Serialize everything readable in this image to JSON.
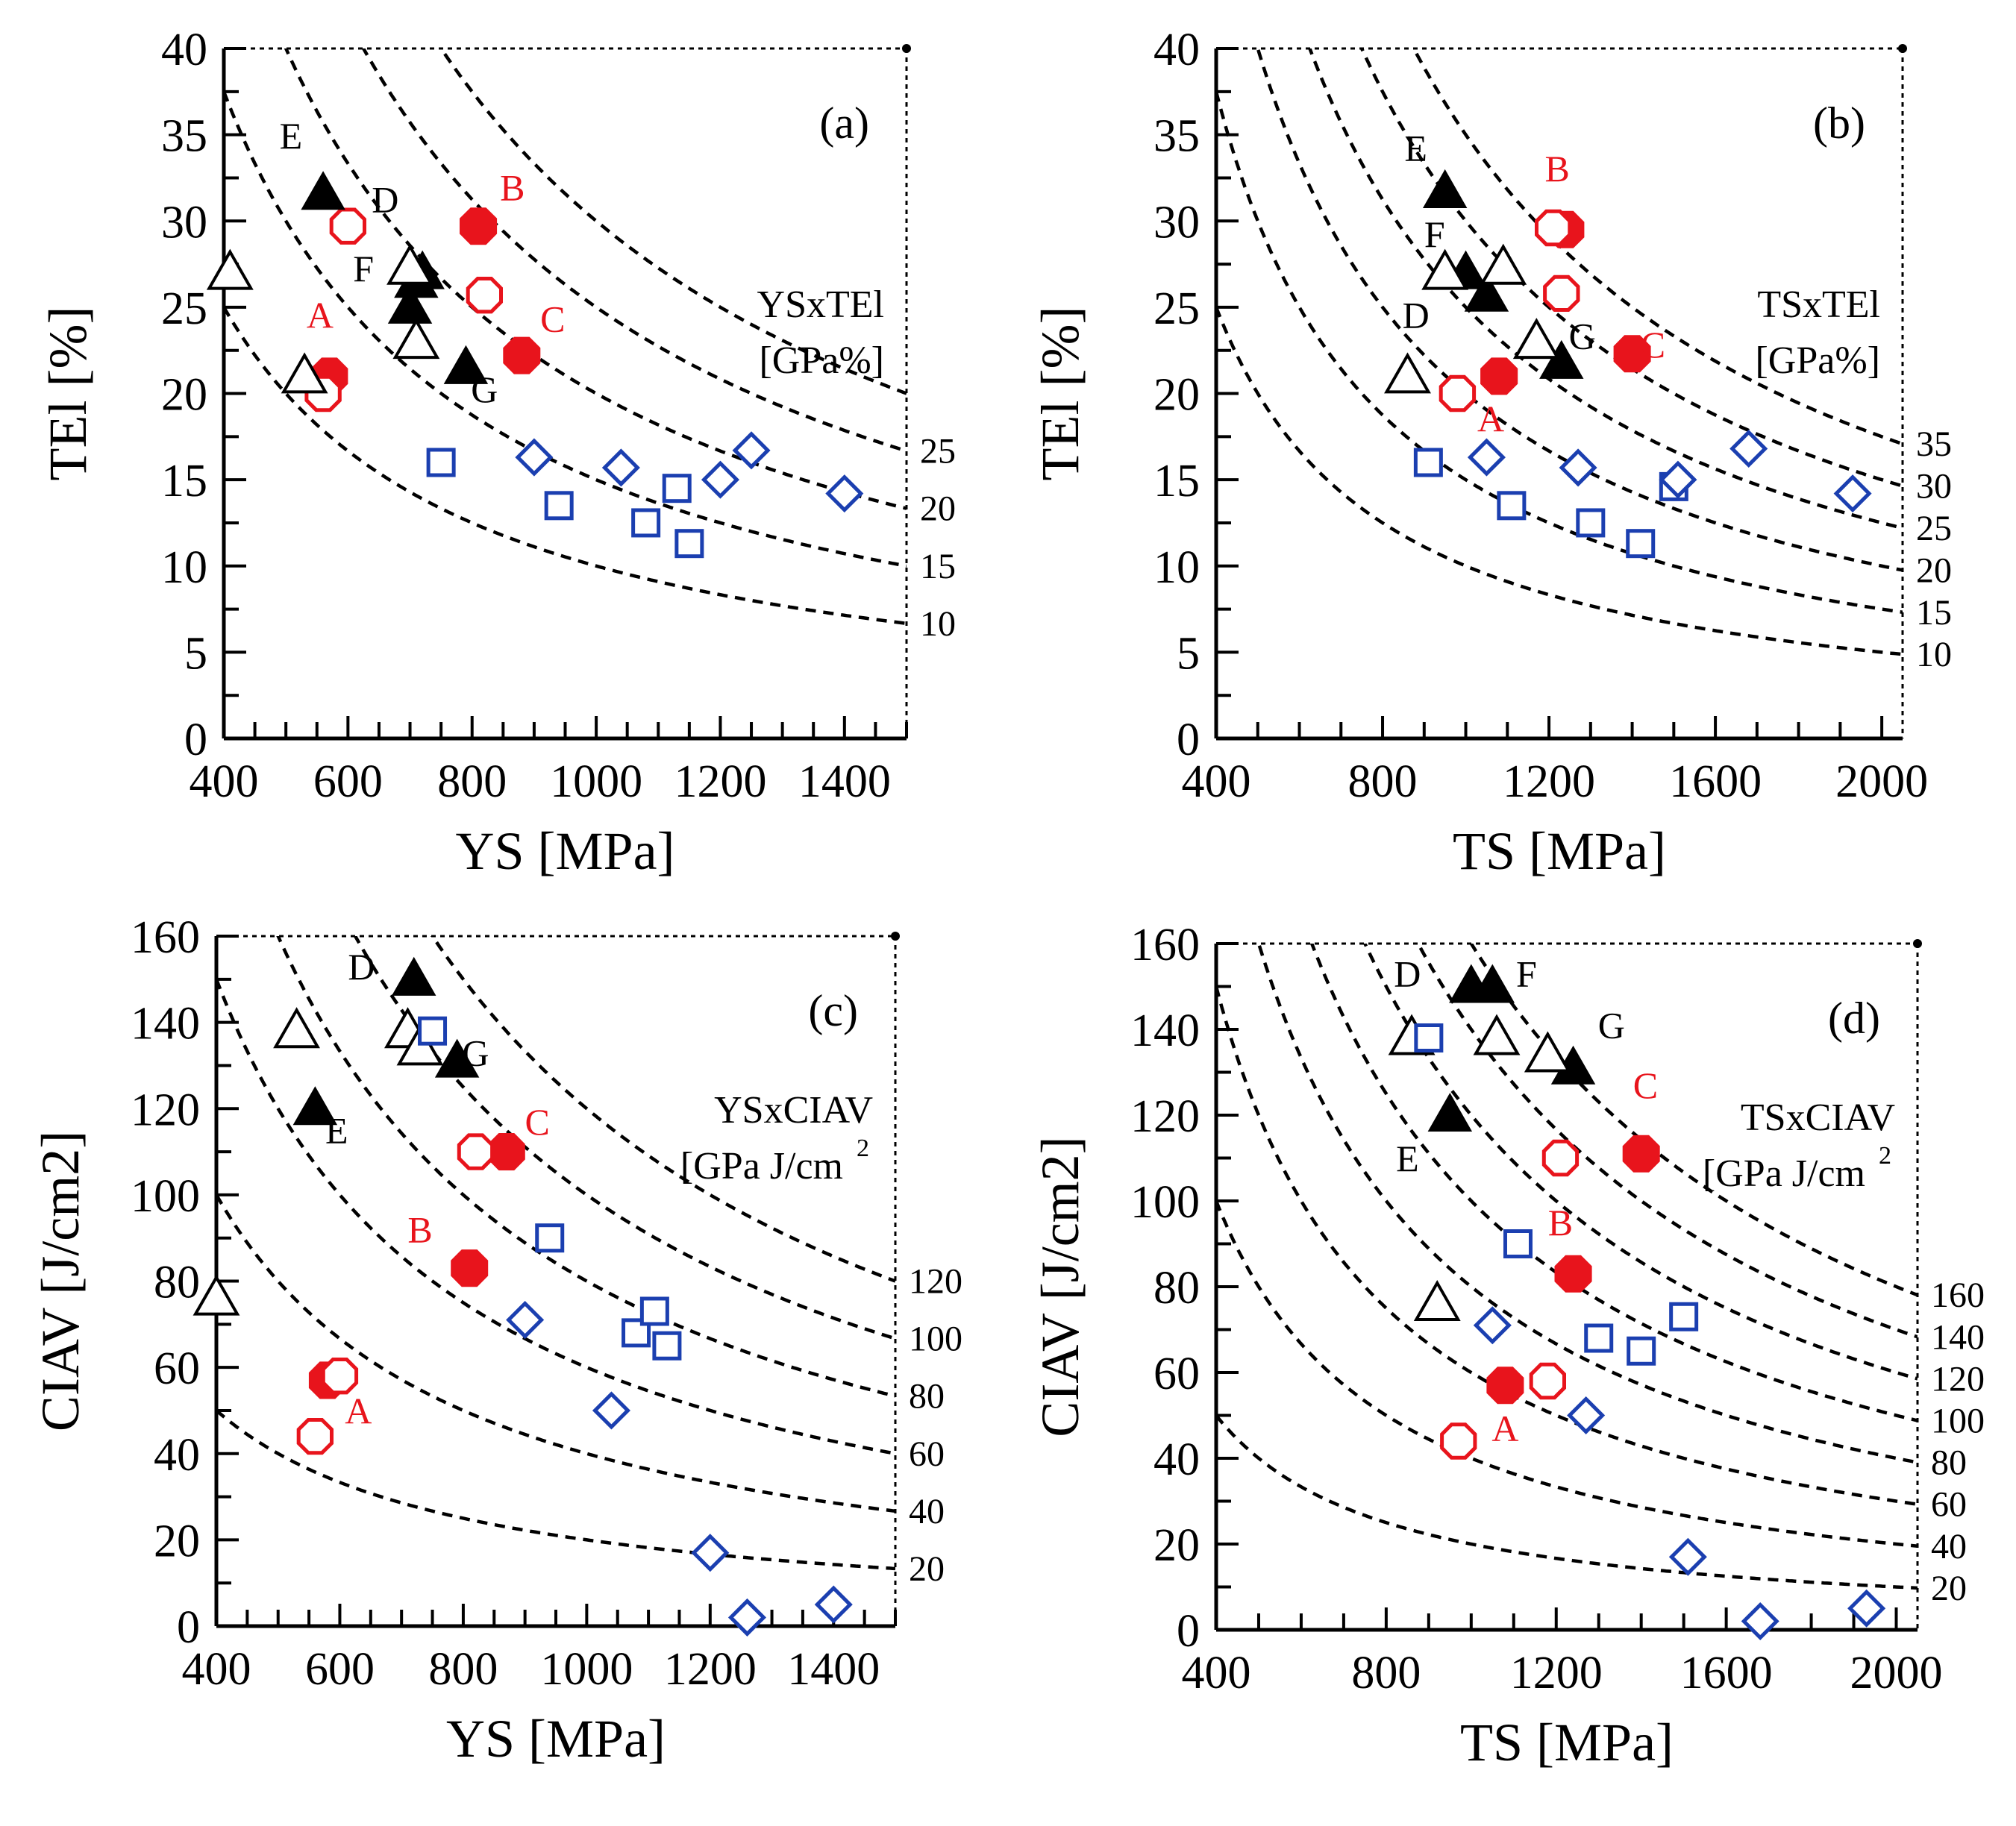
{
  "figure": {
    "colors": {
      "red": "#e8141c",
      "blue": "#1b3fb0",
      "black": "#000000"
    }
  },
  "chart_data": [
    {
      "id": "a",
      "type": "scatter",
      "panel_label": "(a)",
      "xlabel": "YS [MPa]",
      "ylabel": "TEl [%]",
      "xlim": [
        400,
        1500
      ],
      "ylim": [
        0,
        40
      ],
      "xticks": [
        "400",
        "600",
        "800",
        "1000",
        "1200",
        "1400"
      ],
      "xtick_values": [
        400,
        600,
        800,
        1000,
        1200,
        1400
      ],
      "yticks": [
        "0",
        "5",
        "10",
        "15",
        "20",
        "25",
        "30",
        "35",
        "40"
      ],
      "ytick_values": [
        0,
        5,
        10,
        15,
        20,
        25,
        30,
        35,
        40
      ],
      "product_label": [
        "YSxTEl",
        "[GPa%]"
      ],
      "contours": [
        {
          "label": "10",
          "product": 10
        },
        {
          "label": "15",
          "product": 15
        },
        {
          "label": "20",
          "product": 20
        },
        {
          "label": "25",
          "product": 25
        },
        {
          "label": "",
          "product": 30
        }
      ],
      "series": [
        {
          "name": "filled-red-circle",
          "marker": "circle",
          "color": "red",
          "filled": true,
          "points": [
            [
              570,
              21
            ],
            [
              810,
              29.7
            ],
            [
              880,
              22.2
            ]
          ]
        },
        {
          "name": "open-red-circle",
          "marker": "circle",
          "color": "red",
          "filled": false,
          "points": [
            [
              560,
              20
            ],
            [
              600,
              29.7
            ],
            [
              820,
              25.7
            ]
          ]
        },
        {
          "name": "filled-black-triangle",
          "marker": "triangle",
          "color": "black",
          "filled": true,
          "points": [
            [
              560,
              31.6
            ],
            [
              710,
              26.5
            ],
            [
              720,
              27
            ],
            [
              700,
              25
            ],
            [
              790,
              21.5
            ]
          ]
        },
        {
          "name": "open-black-triangle",
          "marker": "triangle",
          "color": "black",
          "filled": false,
          "points": [
            [
              410,
              27
            ],
            [
              530,
              21
            ],
            [
              700,
              27.3
            ],
            [
              710,
              23
            ]
          ]
        },
        {
          "name": "open-blue-square",
          "marker": "square",
          "color": "blue",
          "filled": false,
          "points": [
            [
              750,
              16
            ],
            [
              940,
              13.5
            ],
            [
              1080,
              12.5
            ],
            [
              1130,
              14.5
            ],
            [
              1150,
              11.3
            ]
          ]
        },
        {
          "name": "open-blue-diamond",
          "marker": "diamond",
          "color": "blue",
          "filled": false,
          "points": [
            [
              900,
              16.3
            ],
            [
              1040,
              15.7
            ],
            [
              1200,
              15
            ],
            [
              1250,
              16.7
            ],
            [
              1400,
              14.2
            ]
          ]
        }
      ],
      "annotations": [
        {
          "text": "A",
          "x": 555,
          "y": 23.8,
          "color": "red"
        },
        {
          "text": "B",
          "x": 865,
          "y": 31.2,
          "color": "red"
        },
        {
          "text": "C",
          "x": 930,
          "y": 23.6,
          "color": "red"
        },
        {
          "text": "D",
          "x": 660,
          "y": 30.5,
          "color": "black"
        },
        {
          "text": "E",
          "x": 508,
          "y": 34.2,
          "color": "black"
        },
        {
          "text": "F",
          "x": 625,
          "y": 26.5,
          "color": "black"
        },
        {
          "text": "G",
          "x": 820,
          "y": 19.5,
          "color": "black"
        }
      ]
    },
    {
      "id": "b",
      "type": "scatter",
      "panel_label": "(b)",
      "xlabel": "TS [MPa]",
      "ylabel": "TEl [%]",
      "xlim": [
        400,
        2050
      ],
      "ylim": [
        0,
        40
      ],
      "xticks": [
        "400",
        "800",
        "1200",
        "1600",
        "2000"
      ],
      "xtick_values": [
        400,
        800,
        1200,
        1600,
        2000
      ],
      "yticks": [
        "0",
        "5",
        "10",
        "15",
        "20",
        "25",
        "30",
        "35",
        "40"
      ],
      "ytick_values": [
        0,
        5,
        10,
        15,
        20,
        25,
        30,
        35,
        40
      ],
      "product_label": [
        "TSxTEl",
        "[GPa%]"
      ],
      "contours": [
        {
          "label": "10",
          "product": 10
        },
        {
          "label": "15",
          "product": 15
        },
        {
          "label": "20",
          "product": 20
        },
        {
          "label": "25",
          "product": 25
        },
        {
          "label": "30",
          "product": 30
        },
        {
          "label": "35",
          "product": 35
        }
      ],
      "series": [
        {
          "name": "filled-red-circle",
          "marker": "circle",
          "color": "red",
          "filled": true,
          "points": [
            [
              1080,
              21
            ],
            [
              1240,
              29.5
            ],
            [
              1400,
              22.3
            ]
          ]
        },
        {
          "name": "open-red-circle",
          "marker": "circle",
          "color": "red",
          "filled": false,
          "points": [
            [
              980,
              20
            ],
            [
              1210,
              29.6
            ],
            [
              1230,
              25.8
            ]
          ]
        },
        {
          "name": "filled-black-triangle",
          "marker": "triangle",
          "color": "black",
          "filled": true,
          "points": [
            [
              950,
              31.7
            ],
            [
              1000,
              27
            ],
            [
              1050,
              25.7
            ],
            [
              1230,
              21.8
            ]
          ]
        },
        {
          "name": "open-black-triangle",
          "marker": "triangle",
          "color": "black",
          "filled": false,
          "points": [
            [
              860,
              21
            ],
            [
              950,
              27
            ],
            [
              1090,
              27.3
            ],
            [
              1170,
              23
            ]
          ]
        },
        {
          "name": "open-blue-square",
          "marker": "square",
          "color": "blue",
          "filled": false,
          "points": [
            [
              910,
              16
            ],
            [
              1110,
              13.5
            ],
            [
              1300,
              12.5
            ],
            [
              1420,
              11.3
            ],
            [
              1500,
              14.6
            ]
          ]
        },
        {
          "name": "open-blue-diamond",
          "marker": "diamond",
          "color": "blue",
          "filled": false,
          "points": [
            [
              1050,
              16.3
            ],
            [
              1270,
              15.7
            ],
            [
              1510,
              15
            ],
            [
              1680,
              16.8
            ],
            [
              1930,
              14.2
            ]
          ]
        }
      ],
      "annotations": [
        {
          "text": "A",
          "x": 1060,
          "y": 17.8,
          "color": "red"
        },
        {
          "text": "B",
          "x": 1220,
          "y": 32.3,
          "color": "red"
        },
        {
          "text": "C",
          "x": 1450,
          "y": 22.1,
          "color": "red"
        },
        {
          "text": "D",
          "x": 880,
          "y": 23.8,
          "color": "black"
        },
        {
          "text": "E",
          "x": 880,
          "y": 33.5,
          "color": "black"
        },
        {
          "text": "F",
          "x": 925,
          "y": 28.5,
          "color": "black"
        },
        {
          "text": "G",
          "x": 1280,
          "y": 22.6,
          "color": "black"
        }
      ]
    },
    {
      "id": "c",
      "type": "scatter",
      "panel_label": "(c)",
      "xlabel": "YS [MPa]",
      "ylabel": "CIAV [J/cm2]",
      "xlim": [
        400,
        1500
      ],
      "ylim": [
        0,
        160
      ],
      "xticks": [
        "400",
        "600",
        "800",
        "1000",
        "1200",
        "1400"
      ],
      "xtick_values": [
        400,
        600,
        800,
        1000,
        1200,
        1400
      ],
      "yticks": [
        "0",
        "20",
        "40",
        "60",
        "80",
        "100",
        "120",
        "140",
        "160"
      ],
      "ytick_values": [
        0,
        20,
        40,
        60,
        80,
        100,
        120,
        140,
        160
      ],
      "product_label": [
        "YSxCIAV",
        "[GPa J/cm"
      ],
      "product_label_sup": "2",
      "contours": [
        {
          "label": "20",
          "product": 20
        },
        {
          "label": "40",
          "product": 40
        },
        {
          "label": "60",
          "product": 60
        },
        {
          "label": "80",
          "product": 80
        },
        {
          "label": "100",
          "product": 100
        },
        {
          "label": "120",
          "product": 120
        }
      ],
      "series": [
        {
          "name": "filled-red-circle",
          "marker": "circle",
          "color": "red",
          "filled": true,
          "points": [
            [
              580,
              57
            ],
            [
              810,
              83
            ],
            [
              870,
              110
            ]
          ]
        },
        {
          "name": "open-red-circle",
          "marker": "circle",
          "color": "red",
          "filled": false,
          "points": [
            [
              560,
              44
            ],
            [
              600,
              58
            ],
            [
              820,
              110
            ]
          ]
        },
        {
          "name": "filled-black-triangle",
          "marker": "triangle",
          "color": "black",
          "filled": true,
          "points": [
            [
              560,
              120
            ],
            [
              720,
              150
            ],
            [
              790,
              131
            ]
          ]
        },
        {
          "name": "open-black-triangle",
          "marker": "triangle",
          "color": "black",
          "filled": false,
          "points": [
            [
              400,
              76
            ],
            [
              530,
              138
            ],
            [
              710,
              138
            ],
            [
              730,
              134
            ]
          ]
        },
        {
          "name": "open-blue-square",
          "marker": "square",
          "color": "blue",
          "filled": false,
          "points": [
            [
              750,
              138
            ],
            [
              940,
              90
            ],
            [
              1080,
              68
            ],
            [
              1110,
              73
            ],
            [
              1130,
              65
            ]
          ]
        },
        {
          "name": "open-blue-diamond",
          "marker": "diamond",
          "color": "blue",
          "filled": false,
          "points": [
            [
              900,
              71
            ],
            [
              1040,
              50
            ],
            [
              1200,
              17
            ],
            [
              1260,
              2
            ],
            [
              1400,
              5
            ]
          ]
        }
      ],
      "annotations": [
        {
          "text": "A",
          "x": 630,
          "y": 47,
          "color": "red"
        },
        {
          "text": "B",
          "x": 730,
          "y": 89,
          "color": "red"
        },
        {
          "text": "C",
          "x": 920,
          "y": 114,
          "color": "red"
        },
        {
          "text": "D",
          "x": 635,
          "y": 150,
          "color": "black"
        },
        {
          "text": "E",
          "x": 595,
          "y": 112,
          "color": "black"
        },
        {
          "text": "G",
          "x": 820,
          "y": 130,
          "color": "black"
        }
      ]
    },
    {
      "id": "d",
      "type": "scatter",
      "panel_label": "(d)",
      "xlabel": "TS [MPa]",
      "ylabel": "CIAV [J/cm2]",
      "xlim": [
        400,
        2050
      ],
      "ylim": [
        0,
        160
      ],
      "xticks": [
        "400",
        "800",
        "1200",
        "1600",
        "2000"
      ],
      "xtick_values": [
        400,
        800,
        1200,
        1600,
        2000
      ],
      "yticks": [
        "0",
        "20",
        "40",
        "60",
        "80",
        "100",
        "120",
        "140",
        "160"
      ],
      "ytick_values": [
        0,
        20,
        40,
        60,
        80,
        100,
        120,
        140,
        160
      ],
      "product_label": [
        "TSxCIAV",
        "[GPa J/cm"
      ],
      "product_label_sup": "2",
      "contours": [
        {
          "label": "20",
          "product": 20
        },
        {
          "label": "40",
          "product": 40
        },
        {
          "label": "60",
          "product": 60
        },
        {
          "label": "80",
          "product": 80
        },
        {
          "label": "100",
          "product": 100
        },
        {
          "label": "120",
          "product": 120
        },
        {
          "label": "140",
          "product": 140
        },
        {
          "label": "160",
          "product": 160
        }
      ],
      "series": [
        {
          "name": "filled-red-circle",
          "marker": "circle",
          "color": "red",
          "filled": true,
          "points": [
            [
              1080,
              57
            ],
            [
              1240,
              83
            ],
            [
              1400,
              111
            ]
          ]
        },
        {
          "name": "open-red-circle",
          "marker": "circle",
          "color": "red",
          "filled": false,
          "points": [
            [
              970,
              44
            ],
            [
              1180,
              58
            ],
            [
              1210,
              110
            ]
          ]
        },
        {
          "name": "filled-black-triangle",
          "marker": "triangle",
          "color": "black",
          "filled": true,
          "points": [
            [
              950,
              120
            ],
            [
              1000,
              150
            ],
            [
              1050,
              150
            ],
            [
              1240,
              131
            ]
          ]
        },
        {
          "name": "open-black-triangle",
          "marker": "triangle",
          "color": "black",
          "filled": false,
          "points": [
            [
              860,
              138
            ],
            [
              920,
              76
            ],
            [
              1060,
              138
            ],
            [
              1180,
              134
            ]
          ]
        },
        {
          "name": "open-blue-square",
          "marker": "square",
          "color": "blue",
          "filled": false,
          "points": [
            [
              900,
              138
            ],
            [
              1110,
              90
            ],
            [
              1300,
              68
            ],
            [
              1400,
              65
            ],
            [
              1500,
              73
            ]
          ]
        },
        {
          "name": "open-blue-diamond",
          "marker": "diamond",
          "color": "blue",
          "filled": false,
          "points": [
            [
              1050,
              71
            ],
            [
              1270,
              50
            ],
            [
              1510,
              17
            ],
            [
              1680,
              2
            ],
            [
              1930,
              5
            ]
          ]
        }
      ],
      "annotations": [
        {
          "text": "A",
          "x": 1080,
          "y": 44,
          "color": "red"
        },
        {
          "text": "B",
          "x": 1210,
          "y": 92,
          "color": "red"
        },
        {
          "text": "C",
          "x": 1410,
          "y": 124,
          "color": "red"
        },
        {
          "text": "D",
          "x": 850,
          "y": 150,
          "color": "black"
        },
        {
          "text": "E",
          "x": 850,
          "y": 107,
          "color": "black"
        },
        {
          "text": "F",
          "x": 1130,
          "y": 150,
          "color": "black"
        },
        {
          "text": "G",
          "x": 1330,
          "y": 138,
          "color": "black"
        }
      ]
    }
  ]
}
